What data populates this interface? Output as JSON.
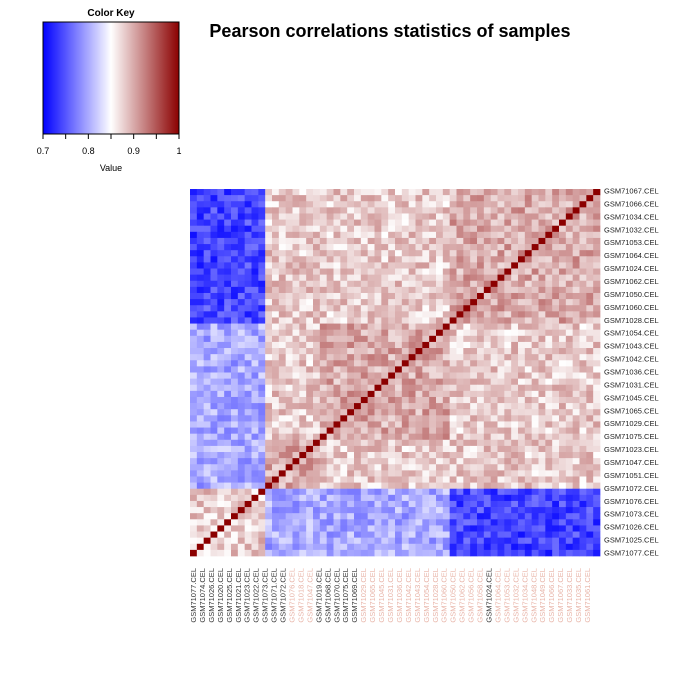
{
  "chart_data": {
    "type": "heatmap",
    "title": "Pearson correlations statistics of samples",
    "color_key": {
      "title": "Color Key",
      "xlabel": "Value",
      "range": [
        0.7,
        1.0
      ],
      "ticks": [
        "0.7",
        "0.8",
        "0.9",
        "1"
      ],
      "colors": {
        "low": "#0000ff",
        "mid": "#ffffff",
        "high": "#8b0000"
      }
    },
    "n_samples": 60,
    "row_labels": [
      "GSM71067.CEL",
      "GSM71066.CEL",
      "GSM71034.CEL",
      "GSM71032.CEL",
      "GSM71053.CEL",
      "GSM71064.CEL",
      "GSM71024.CEL",
      "GSM71062.CEL",
      "GSM71050.CEL",
      "GSM71060.CEL",
      "GSM71028.CEL",
      "GSM71054.CEL",
      "GSM71043.CEL",
      "GSM71042.CEL",
      "GSM71036.CEL",
      "GSM71031.CEL",
      "GSM71045.CEL",
      "GSM71065.CEL",
      "GSM71029.CEL",
      "GSM71075.CEL",
      "GSM71023.CEL",
      "GSM71047.CEL",
      "GSM71051.CEL",
      "GSM71072.CEL",
      "GSM71076.CEL",
      "GSM71073.CEL",
      "GSM71026.CEL",
      "GSM71025.CEL",
      "GSM71077.CEL"
    ],
    "column_labels": [
      {
        "text": "GSM71077.CEL",
        "color": "#333333"
      },
      {
        "text": "GSM71074.CEL",
        "color": "#333333"
      },
      {
        "text": "GSM71026.CEL",
        "color": "#333333"
      },
      {
        "text": "GSM71020.CEL",
        "color": "#333333"
      },
      {
        "text": "GSM71025.CEL",
        "color": "#333333"
      },
      {
        "text": "GSM71021.CEL",
        "color": "#333333"
      },
      {
        "text": "GSM71023.CEL",
        "color": "#333333"
      },
      {
        "text": "GSM71022.CEL",
        "color": "#333333"
      },
      {
        "text": "GSM71073.CEL",
        "color": "#333333"
      },
      {
        "text": "GSM71071.CEL",
        "color": "#333333"
      },
      {
        "text": "GSM71072.CEL",
        "color": "#333333"
      },
      {
        "text": "GSM71076.CEL",
        "color": "#e8b4a8"
      },
      {
        "text": "GSM71018.CEL",
        "color": "#e8b4a8"
      },
      {
        "text": "GSM71047.CEL",
        "color": "#e8b4a8"
      },
      {
        "text": "GSM71019.CEL",
        "color": "#333333"
      },
      {
        "text": "GSM71068.CEL",
        "color": "#333333"
      },
      {
        "text": "GSM71070.CEL",
        "color": "#333333"
      },
      {
        "text": "GSM71075.CEL",
        "color": "#333333"
      },
      {
        "text": "GSM71069.CEL",
        "color": "#333333"
      },
      {
        "text": "GSM71029.CEL",
        "color": "#e8b4a8"
      },
      {
        "text": "GSM71065.CEL",
        "color": "#e8b4a8"
      },
      {
        "text": "GSM71045.CEL",
        "color": "#e8b4a8"
      },
      {
        "text": "GSM71031.CEL",
        "color": "#e8b4a8"
      },
      {
        "text": "GSM71036.CEL",
        "color": "#e8b4a8"
      },
      {
        "text": "GSM71042.CEL",
        "color": "#e8b4a8"
      },
      {
        "text": "GSM71043.CEL",
        "color": "#e8b4a8"
      },
      {
        "text": "GSM71054.CEL",
        "color": "#e8b4a8"
      },
      {
        "text": "GSM71028.CEL",
        "color": "#e8b4a8"
      },
      {
        "text": "GSM71060.CEL",
        "color": "#e8b4a8"
      },
      {
        "text": "GSM71050.CEL",
        "color": "#e8b4a8"
      },
      {
        "text": "GSM71062.CEL",
        "color": "#e8b4a8"
      },
      {
        "text": "GSM71056.CEL",
        "color": "#e8b4a8"
      },
      {
        "text": "GSM71058.CEL",
        "color": "#e8b4a8"
      },
      {
        "text": "GSM71024.CEL",
        "color": "#333333"
      },
      {
        "text": "GSM71064.CEL",
        "color": "#e8b4a8"
      },
      {
        "text": "GSM71053.CEL",
        "color": "#e8b4a8"
      },
      {
        "text": "GSM71032.CEL",
        "color": "#e8b4a8"
      },
      {
        "text": "GSM71034.CEL",
        "color": "#e8b4a8"
      },
      {
        "text": "GSM71048.CEL",
        "color": "#e8b4a8"
      },
      {
        "text": "GSM71049.CEL",
        "color": "#e8b4a8"
      },
      {
        "text": "GSM71066.CEL",
        "color": "#e8b4a8"
      },
      {
        "text": "GSM71067.CEL",
        "color": "#e8b4a8"
      },
      {
        "text": "GSM71033.CEL",
        "color": "#e8b4a8"
      },
      {
        "text": "GSM71035.CEL",
        "color": "#e8b4a8"
      },
      {
        "text": "GSM71061.CEL",
        "color": "#e8b4a8"
      }
    ]
  }
}
